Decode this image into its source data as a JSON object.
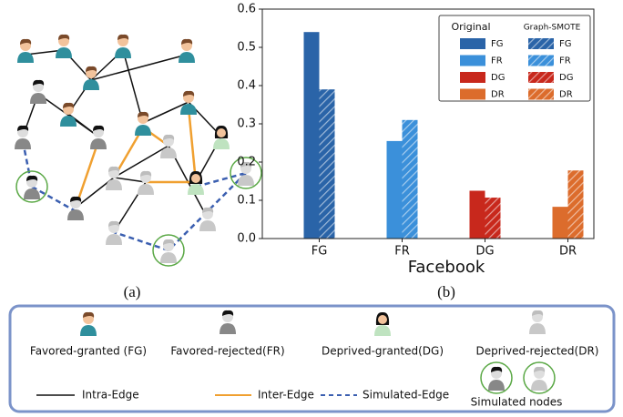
{
  "chart_data": {
    "type": "bar",
    "xlabel": "Facebook",
    "categories": [
      "FG",
      "FR",
      "DG",
      "DR"
    ],
    "colors": [
      "#2a64a8",
      "#3b90da",
      "#c8281c",
      "#dc6c2c"
    ],
    "series": [
      {
        "name": "Original",
        "hatched": false,
        "values": [
          0.54,
          0.255,
          0.125,
          0.083
        ]
      },
      {
        "name": "Graph-SMOTE",
        "hatched": true,
        "values": [
          0.39,
          0.31,
          0.107,
          0.178
        ]
      }
    ],
    "ylim": [
      0,
      0.6
    ],
    "yticks": [
      {
        "value": 0,
        "label": "0.0"
      },
      0.1,
      0.2,
      0.3,
      0.4,
      0.5,
      0.6
    ]
  },
  "panel_labels": [
    "(a)",
    "(b)"
  ],
  "legend_box": {
    "nodes": [
      "Favored-granted (FG)",
      "Favored-rejected(FR)",
      "Deprived-granted(DG)",
      "Deprived-rejected(DR)"
    ],
    "edges": [
      "Intra-Edge",
      "Inter-Edge",
      "Simulated-Edge"
    ],
    "simulated": "Simulated nodes"
  }
}
